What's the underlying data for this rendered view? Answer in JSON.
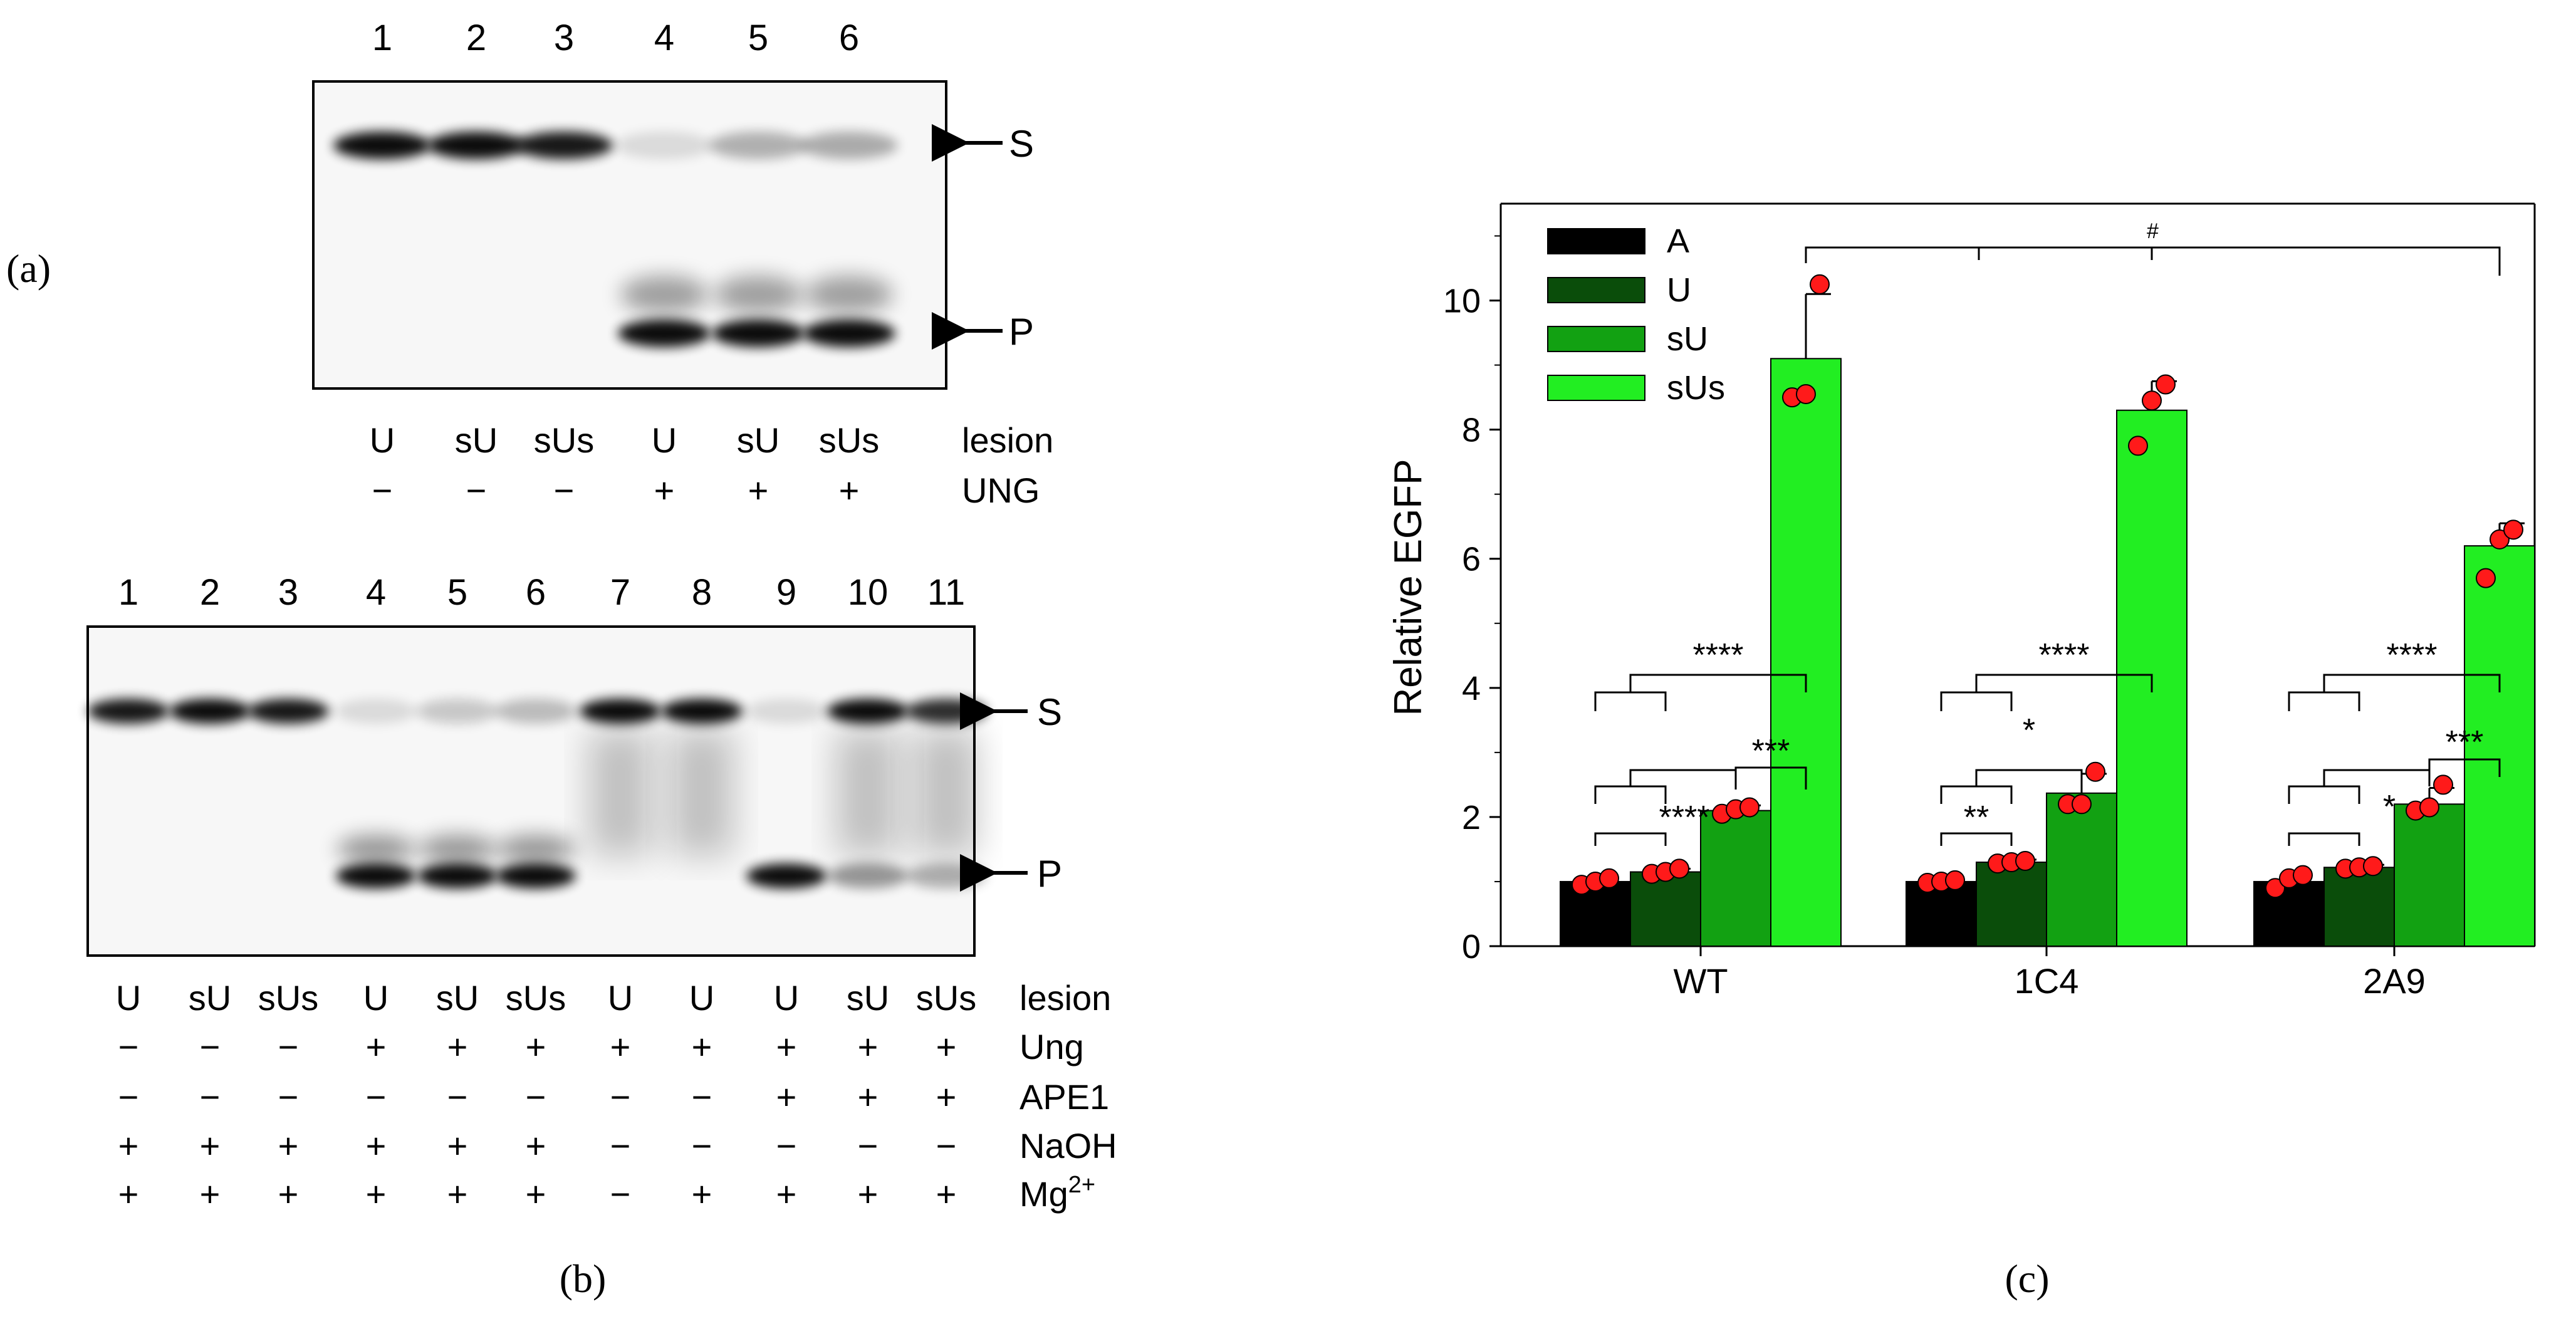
{
  "panel_a": {
    "label": "(a)",
    "lane_numbers": [
      "1",
      "2",
      "3",
      "4",
      "5",
      "6"
    ],
    "band_s": "S",
    "band_p": "P",
    "rows": [
      {
        "name": "lesion",
        "values": [
          "U",
          "sU",
          "sUs",
          "U",
          "sU",
          "sUs"
        ]
      },
      {
        "name": "UNG",
        "values": [
          "−",
          "−",
          "−",
          "+",
          "+",
          "+"
        ]
      }
    ]
  },
  "panel_b": {
    "label": "(b)",
    "lane_numbers": [
      "1",
      "2",
      "3",
      "4",
      "5",
      "6",
      "7",
      "8",
      "9",
      "10",
      "11"
    ],
    "band_s": "S",
    "band_p": "P",
    "rows": [
      {
        "name": "lesion",
        "values": [
          "U",
          "sU",
          "sUs",
          "U",
          "sU",
          "sUs",
          "U",
          "U",
          "U",
          "sU",
          "sUs"
        ]
      },
      {
        "name": "Ung",
        "values": [
          "−",
          "−",
          "−",
          "+",
          "+",
          "+",
          "+",
          "+",
          "+",
          "+",
          "+"
        ]
      },
      {
        "name": "APE1",
        "values": [
          "−",
          "−",
          "−",
          "−",
          "−",
          "−",
          "−",
          "−",
          "+",
          "+",
          "+"
        ]
      },
      {
        "name": "NaOH",
        "values": [
          "+",
          "+",
          "+",
          "+",
          "+",
          "+",
          "−",
          "−",
          "−",
          "−",
          "−"
        ]
      },
      {
        "name": "Mg",
        "sup": "2+",
        "values": [
          "+",
          "+",
          "+",
          "+",
          "+",
          "+",
          "−",
          "+",
          "+",
          "+",
          "+"
        ]
      }
    ]
  },
  "panel_c": {
    "label": "(c)"
  },
  "chart_data": {
    "type": "bar",
    "ylabel": "Relative EGFP",
    "xlabel": "",
    "ylim": [
      0,
      11.5
    ],
    "yticks": [
      0,
      2,
      4,
      6,
      8,
      10
    ],
    "categories": [
      "WT",
      "1C4",
      "2A9"
    ],
    "legend_position": "top-left",
    "series": [
      {
        "name": "A",
        "color": "#000000",
        "values": [
          1.0,
          1.0,
          1.0
        ],
        "errors": [
          0,
          0,
          0
        ],
        "points": [
          [
            0.95,
            1.0,
            1.05
          ],
          [
            0.98,
            1.0,
            1.02
          ],
          [
            0.9,
            1.05,
            1.1
          ]
        ]
      },
      {
        "name": "U",
        "color": "#0a4d0a",
        "values": [
          1.15,
          1.3,
          1.22
        ],
        "errors": [
          0.05,
          0.04,
          0.04
        ],
        "points": [
          [
            1.12,
            1.15,
            1.2
          ],
          [
            1.28,
            1.3,
            1.32
          ],
          [
            1.2,
            1.22,
            1.24
          ]
        ]
      },
      {
        "name": "sU",
        "color": "#12a112",
        "values": [
          2.1,
          2.37,
          2.2
        ],
        "errors": [
          0.08,
          0.3,
          0.25
        ],
        "points": [
          [
            2.05,
            2.12,
            2.15
          ],
          [
            2.2,
            2.2,
            2.7
          ],
          [
            2.1,
            2.15,
            2.5
          ]
        ]
      },
      {
        "name": "sUs",
        "color": "#22ee22",
        "values": [
          9.1,
          8.3,
          6.2
        ],
        "errors": [
          1.0,
          0.45,
          0.35
        ],
        "points": [
          [
            8.5,
            8.55,
            10.25
          ],
          [
            7.75,
            8.45,
            8.7
          ],
          [
            5.7,
            6.3,
            6.45
          ]
        ]
      }
    ],
    "annotations": {
      "sig_all": "****",
      "per_group": [
        {
          "group": "WT",
          "labels": [
            "****",
            "****",
            "***"
          ]
        },
        {
          "group": "1C4",
          "labels": [
            "****",
            "*",
            "**"
          ]
        },
        {
          "group": "2A9",
          "labels": [
            "****",
            "*",
            "***"
          ]
        }
      ],
      "hash": "#"
    }
  }
}
